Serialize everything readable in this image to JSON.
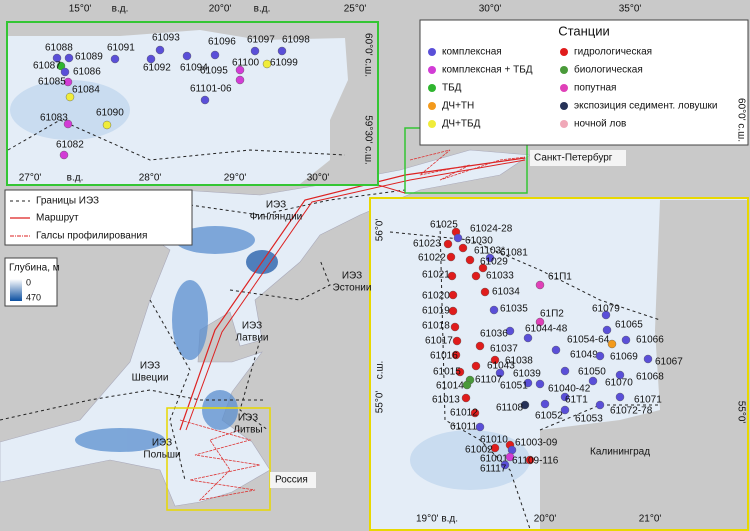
{
  "map": {
    "top_axis_labels": [
      "15°0'",
      "в.д.",
      "20°0'",
      "в.д.",
      "25°0'",
      "30°0'",
      "35°0'"
    ],
    "right_axis_labels": [
      "60°0' с.ш.",
      "55°0'"
    ],
    "regions": [
      [
        "ИЭЗ",
        "Финляндии"
      ],
      [
        "ИЭЗ",
        "Эстонии"
      ],
      [
        "ИЭЗ",
        "Латвии"
      ],
      [
        "ИЭЗ",
        "Швеции"
      ],
      [
        "ИЭЗ",
        "Литвы"
      ],
      [
        "ИЭЗ",
        "Польши"
      ]
    ],
    "places": [
      "Россия",
      "Санкт-Петербург"
    ]
  },
  "inset_north": {
    "x_labels": [
      "27°0'",
      "в.д.",
      "28°0'",
      "29°0'",
      "30°0'"
    ],
    "y_labels": [
      "60°0' с.ш.",
      "59°30' с.ш."
    ],
    "stations": [
      "61088",
      "61089",
      "61087",
      "61086",
      "61085",
      "61084",
      "61083",
      "61090",
      "61082",
      "61091",
      "61093",
      "61092",
      "61094",
      "61096",
      "61097",
      "61098",
      "61095",
      "61100",
      "61099",
      "61101-06"
    ]
  },
  "inset_south": {
    "x_labels": [
      "19°0' в.д.",
      "20°0'",
      "21°0'"
    ],
    "y_labels": [
      "56°0'",
      "с.ш.",
      "55°0'"
    ],
    "places": [
      "Калининград"
    ],
    "stations": [
      "61025",
      "61024-28",
      "61030",
      "61023",
      "61103*",
      "61022",
      "61081",
      "61029",
      "61021",
      "61033",
      "61020",
      "61034",
      "61П1",
      "61079",
      "61035",
      "61П2",
      "61019",
      "61018",
      "61036",
      "61044-48",
      "61065",
      "61017",
      "61066",
      "61054-64",
      "61037",
      "61049",
      "61069",
      "61016",
      "61038",
      "61043",
      "61067",
      "61015",
      "61039",
      "61050",
      "61068",
      "61107",
      "61014",
      "61051",
      "61040-42",
      "61070",
      "61013",
      "61Т1",
      "61071",
      "61108",
      "61052",
      "61072-78",
      "61053",
      "61012",
      "61011",
      "61010",
      "61003-09",
      "61002",
      "61001",
      "61109-116",
      "61117"
    ]
  },
  "legend": {
    "title": "Станции",
    "items": [
      {
        "label": "комплексная",
        "color": "#5a4fd8"
      },
      {
        "label": "комплексная + ТБД",
        "color": "#d23cd6"
      },
      {
        "label": "ТБД",
        "color": "#2fb52f"
      },
      {
        "label": "ДЧ+ТН",
        "color": "#f39a1c"
      },
      {
        "label": "ДЧ+ТБД",
        "color": "#f0ec3a"
      },
      {
        "label": "гидрологическая",
        "color": "#e01c1c"
      },
      {
        "label": "биологическая",
        "color": "#4a9a3a"
      },
      {
        "label": "попутная",
        "color": "#e040b8"
      },
      {
        "label": "экспозиция седимент. ловушки",
        "color": "#263258"
      },
      {
        "label": "ночной лов",
        "color": "#f0a8b8"
      }
    ]
  },
  "line_legend": {
    "items": [
      "Границы ИЭЗ",
      "Маршрут",
      "Галсы профилирования"
    ]
  },
  "depth_legend": {
    "title": "Глубина, м",
    "labels": [
      0,
      470
    ]
  }
}
